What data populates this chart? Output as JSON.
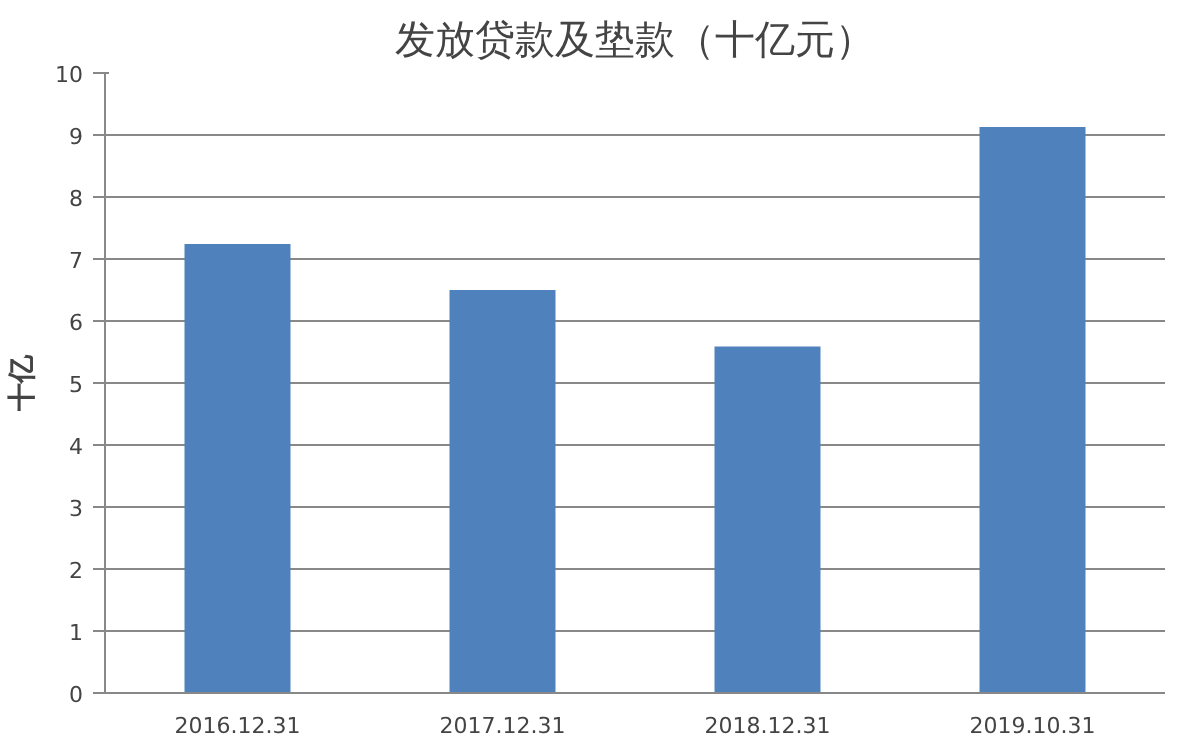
{
  "chart_data": {
    "type": "bar",
    "title": "发放贷款及垫款（十亿元）",
    "ylabel": "十亿",
    "categories": [
      "2016.12.31",
      "2017.12.31",
      "2018.12.31",
      "2019.10.31"
    ],
    "values": [
      7.24,
      6.5,
      5.59,
      9.13
    ],
    "color": "#4f81bd",
    "ylim": [
      0,
      10
    ],
    "yticks": [
      0,
      1,
      2,
      3,
      4,
      5,
      6,
      7,
      8,
      9,
      10
    ],
    "grid": "y"
  }
}
